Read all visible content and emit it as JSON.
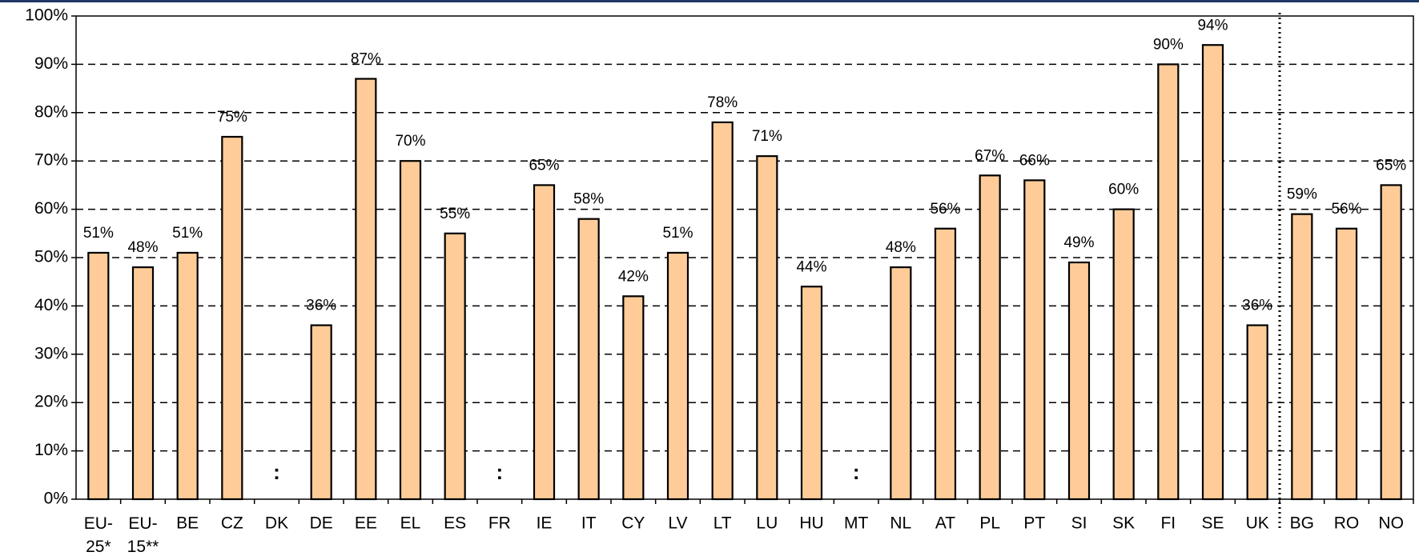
{
  "chart_data": {
    "type": "bar",
    "categories": [
      "EU-25*",
      "EU-15**",
      "BE",
      "CZ",
      "DK",
      "DE",
      "EE",
      "EL",
      "ES",
      "FR",
      "IE",
      "IT",
      "CY",
      "LV",
      "LT",
      "LU",
      "HU",
      "MT",
      "NL",
      "AT",
      "PL",
      "PT",
      "SI",
      "SK",
      "FI",
      "SE",
      "UK",
      "BG",
      "RO",
      "NO"
    ],
    "values": [
      51,
      48,
      51,
      75,
      null,
      36,
      87,
      70,
      55,
      null,
      65,
      58,
      42,
      51,
      78,
      71,
      44,
      null,
      48,
      56,
      67,
      66,
      49,
      60,
      90,
      94,
      36,
      59,
      56,
      65
    ],
    "value_labels": [
      "51%",
      "48%",
      "51%",
      "75%",
      ":",
      "36%",
      "87%",
      "70%",
      "55%",
      ":",
      "65%",
      "58%",
      "42%",
      "51%",
      "78%",
      "71%",
      "44%",
      ":",
      "48%",
      "56%",
      "67%",
      "66%",
      "49%",
      "60%",
      "90%",
      "94%",
      "36%",
      "59%",
      "56%",
      "65%"
    ],
    "color": "#ffcc99",
    "ylim": [
      0,
      100
    ],
    "yticks": [
      {
        "value": 0,
        "label": "0%"
      },
      {
        "value": 10,
        "label": "10%"
      },
      {
        "value": 20,
        "label": "20%"
      },
      {
        "value": 30,
        "label": "30%"
      },
      {
        "value": 40,
        "label": "40%"
      },
      {
        "value": 50,
        "label": "50%"
      },
      {
        "value": 60,
        "label": "60%"
      },
      {
        "value": 70,
        "label": "70%"
      },
      {
        "value": 80,
        "label": "80%"
      },
      {
        "value": 90,
        "label": "90%"
      },
      {
        "value": 100,
        "label": "100%"
      }
    ],
    "grid": true
  }
}
